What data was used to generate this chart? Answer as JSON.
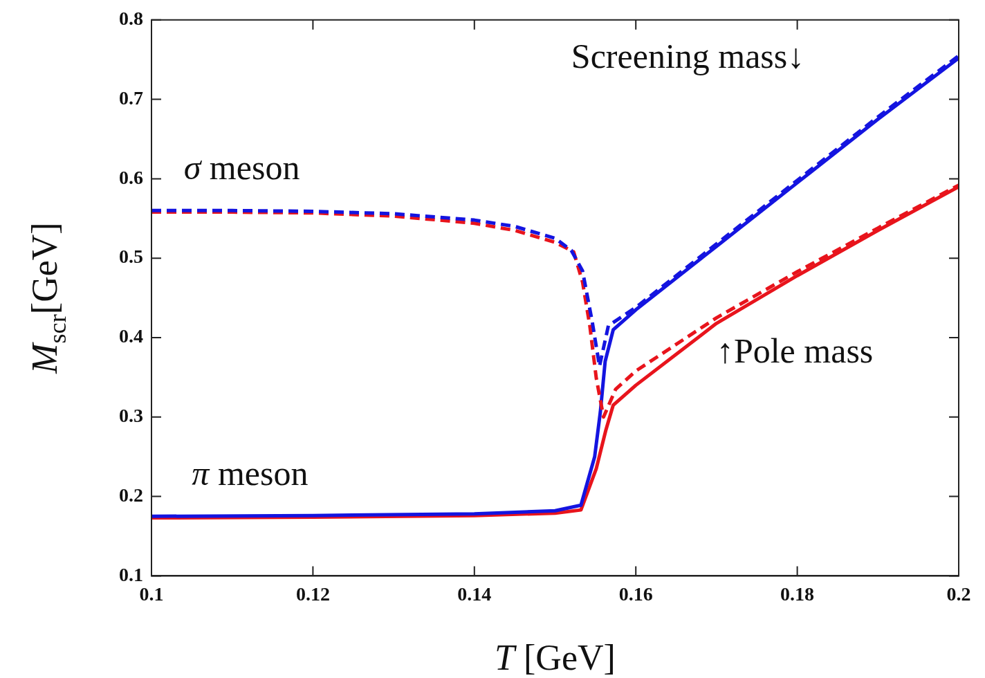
{
  "chart_data": {
    "type": "line",
    "xlabel": "T [GeV]",
    "ylabel": "M$_{scr}$[GeV]",
    "xlim": [
      0.1,
      0.2
    ],
    "ylim": [
      0.1,
      0.8
    ],
    "xticks": [
      0.1,
      0.12,
      0.14,
      0.16,
      0.18,
      0.2
    ],
    "yticks": [
      0.1,
      0.2,
      0.3,
      0.4,
      0.5,
      0.6,
      0.7,
      0.8
    ],
    "grid": false,
    "legend": false,
    "marker": "none",
    "series": [
      {
        "color": "#1414e0",
        "line_style": "dashed",
        "x": [
          0.1,
          0.11,
          0.12,
          0.13,
          0.14,
          0.145,
          0.15,
          0.152,
          0.1534,
          0.1546,
          0.1555,
          0.1566,
          0.16,
          0.17,
          0.18,
          0.19,
          0.2
        ],
        "values": [
          0.56,
          0.56,
          0.559,
          0.556,
          0.548,
          0.54,
          0.525,
          0.51,
          0.484,
          0.42,
          0.364,
          0.415,
          0.438,
          0.518,
          0.598,
          0.678,
          0.755
        ]
      },
      {
        "color": "#e8141c",
        "line_style": "dashed",
        "x": [
          0.1,
          0.11,
          0.12,
          0.13,
          0.14,
          0.145,
          0.15,
          0.1523,
          0.1534,
          0.1543,
          0.1551,
          0.156,
          0.1575,
          0.16,
          0.17,
          0.18,
          0.19,
          0.2
        ],
        "values": [
          0.558,
          0.558,
          0.557,
          0.553,
          0.544,
          0.535,
          0.52,
          0.508,
          0.47,
          0.415,
          0.349,
          0.3,
          0.335,
          0.358,
          0.425,
          0.483,
          0.538,
          0.592
        ]
      },
      {
        "color": "#1414e0",
        "line_style": "solid",
        "x": [
          0.1,
          0.12,
          0.14,
          0.15,
          0.1532,
          0.1549,
          0.1556,
          0.1562,
          0.1572,
          0.16,
          0.17,
          0.18,
          0.19,
          0.2
        ],
        "values": [
          0.175,
          0.176,
          0.178,
          0.182,
          0.189,
          0.25,
          0.306,
          0.37,
          0.41,
          0.435,
          0.515,
          0.595,
          0.675,
          0.752
        ]
      },
      {
        "color": "#e8141c",
        "line_style": "solid",
        "x": [
          0.1,
          0.12,
          0.14,
          0.15,
          0.1532,
          0.1551,
          0.1563,
          0.1572,
          0.16,
          0.17,
          0.18,
          0.19,
          0.2
        ],
        "values": [
          0.173,
          0.174,
          0.176,
          0.179,
          0.183,
          0.235,
          0.284,
          0.315,
          0.34,
          0.418,
          0.478,
          0.535,
          0.59
        ]
      }
    ],
    "annotations": [
      "σ meson",
      "π meson",
      "Screening mass↓",
      "↑Pole mass"
    ]
  }
}
